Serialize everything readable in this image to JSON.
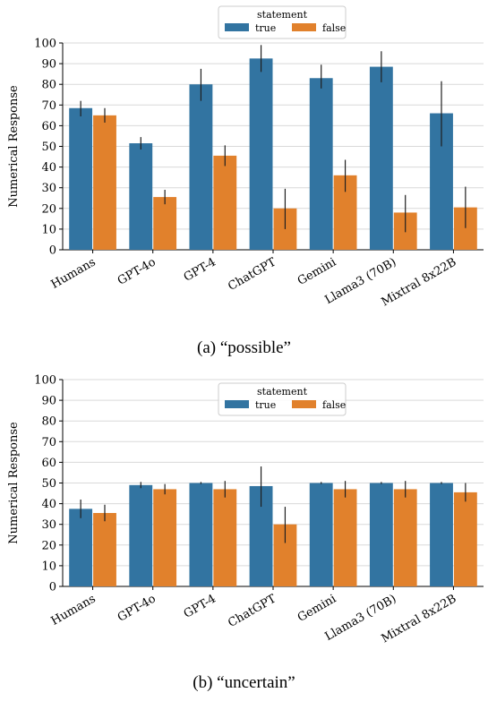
{
  "colors": {
    "true": "#3274a1",
    "false": "#e1812c",
    "grid": "#d9d9d9",
    "axis": "#000000",
    "err": "#1f1f1f"
  },
  "chart_data": [
    {
      "type": "bar",
      "caption": "(a) “possible”",
      "ylabel": "Numerical Response",
      "xlabel": "",
      "ylim": [
        0,
        100
      ],
      "yticks": [
        0,
        10,
        20,
        30,
        40,
        50,
        60,
        70,
        80,
        90,
        100
      ],
      "grid": "horizontal",
      "legend": {
        "title": "statement",
        "placement": "top-center"
      },
      "categories": [
        "Humans",
        "GPT-4o",
        "GPT-4",
        "ChatGPT",
        "Gemini",
        "Llama3 (70B)",
        "Mixtral 8x22B"
      ],
      "series": [
        {
          "name": "true",
          "values": [
            68.5,
            51.5,
            80,
            92.5,
            83,
            88.5,
            66
          ],
          "err_low": [
            64.5,
            48.5,
            72,
            86,
            78,
            81,
            50
          ],
          "err_high": [
            72,
            54.5,
            87.5,
            99,
            89.5,
            96,
            81.5
          ]
        },
        {
          "name": "false",
          "values": [
            65,
            25.5,
            45.5,
            20,
            36,
            18,
            20.5
          ],
          "err_low": [
            61.5,
            22,
            40.5,
            10,
            28,
            8.5,
            10.5
          ],
          "err_high": [
            68.5,
            29,
            50.5,
            29.5,
            43.5,
            26.5,
            30.5
          ]
        }
      ]
    },
    {
      "type": "bar",
      "caption": "(b) “uncertain”",
      "ylabel": "Numerical Response",
      "xlabel": "",
      "ylim": [
        0,
        100
      ],
      "yticks": [
        0,
        10,
        20,
        30,
        40,
        50,
        60,
        70,
        80,
        90,
        100
      ],
      "grid": "horizontal",
      "legend": {
        "title": "statement",
        "placement": "top-center"
      },
      "categories": [
        "Humans",
        "GPT-4o",
        "GPT-4",
        "ChatGPT",
        "Gemini",
        "Llama3 (70B)",
        "Mixtral 8x22B"
      ],
      "series": [
        {
          "name": "true",
          "values": [
            37.5,
            49,
            50,
            48.5,
            50,
            50,
            50
          ],
          "err_low": [
            33,
            47.5,
            49.5,
            38.5,
            49.5,
            49.5,
            49.5
          ],
          "err_high": [
            42,
            50.5,
            50.5,
            58,
            50.5,
            50.5,
            50.5
          ]
        },
        {
          "name": "false",
          "values": [
            35.5,
            47,
            47,
            30,
            47,
            47,
            45.5
          ],
          "err_low": [
            31.5,
            44.5,
            43,
            21,
            43,
            43,
            41
          ],
          "err_high": [
            39.5,
            49.5,
            51,
            38.5,
            51,
            51,
            50
          ]
        }
      ]
    }
  ]
}
